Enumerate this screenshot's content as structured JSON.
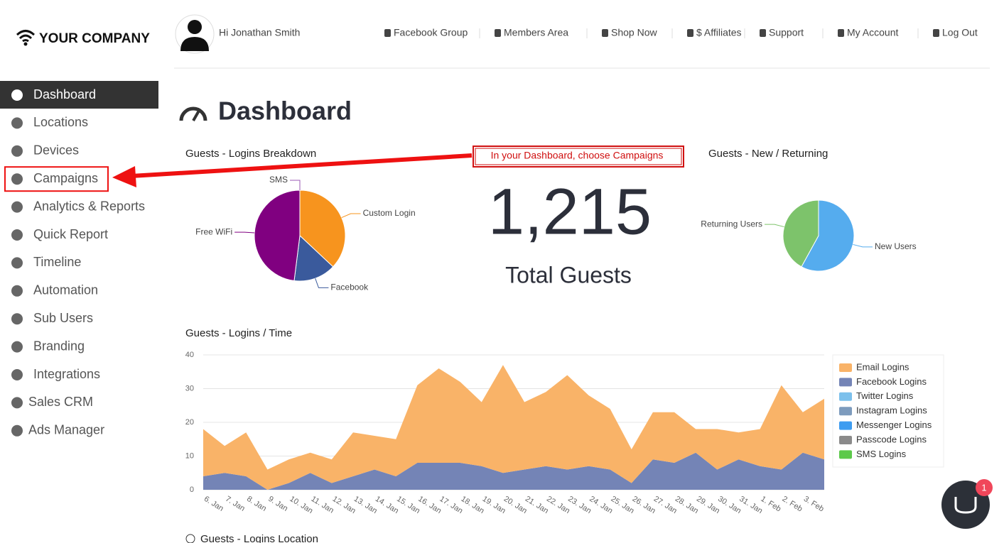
{
  "header": {
    "logo": "YOUR COMPANY",
    "greeting": "Hi Jonathan Smith",
    "links": [
      "Facebook Group",
      "Members Area",
      "Shop Now",
      "$ Affiliates",
      "Support",
      "My Account",
      "Log Out"
    ]
  },
  "sidebar": {
    "active": 0,
    "highlighted": 3,
    "items": [
      "Dashboard",
      "Locations",
      "Devices",
      "Campaigns",
      "Analytics & Reports",
      "Quick Report",
      "Timeline",
      "Automation",
      "Sub Users",
      "Branding",
      "Integrations",
      "Sales CRM",
      "Ads Manager"
    ]
  },
  "page_title": "Dashboard",
  "annotation": "In your Dashboard, choose Campaigns",
  "total_guests": {
    "value": "1,215",
    "label": "Total Guests"
  },
  "charts": [
    {
      "type": "pie",
      "title": "Guests - Logins Breakdown",
      "categories": [
        "Custom Login",
        "Facebook",
        "Free WiFi",
        "SMS"
      ],
      "values": [
        37,
        15,
        48,
        0
      ],
      "colors": [
        "#f7941e",
        "#3a5a9c",
        "#800080",
        "#9b59b6"
      ]
    },
    {
      "type": "pie",
      "title": "Guests - New / Returning",
      "categories": [
        "New Users",
        "Returning Users"
      ],
      "values": [
        58,
        42
      ],
      "colors": [
        "#55acee",
        "#7dc36b"
      ]
    },
    {
      "type": "area",
      "title": "Guests - Logins / Time",
      "stacked": true,
      "grid": true,
      "legend": "right",
      "categories": [
        "6. Jan",
        "7. Jan",
        "8. Jan",
        "9. Jan",
        "10. Jan",
        "11. Jan",
        "12. Jan",
        "13. Jan",
        "14. Jan",
        "15. Jan",
        "16. Jan",
        "17. Jan",
        "18. Jan",
        "19. Jan",
        "20. Jan",
        "21. Jan",
        "22. Jan",
        "23. Jan",
        "24. Jan",
        "25. Jan",
        "26. Jan",
        "27. Jan",
        "28. Jan",
        "29. Jan",
        "30. Jan",
        "31. Jan",
        "1. Feb",
        "2. Feb",
        "3. Feb",
        null
      ],
      "ylim": [
        0,
        40
      ],
      "yticks": [
        0,
        10,
        20,
        30,
        40
      ],
      "series": [
        {
          "name": "Email Logins",
          "color": "#f9b368",
          "values": [
            14,
            8,
            13,
            6,
            7,
            6,
            7,
            13,
            10,
            11,
            23,
            28,
            24,
            19,
            32,
            20,
            22,
            28,
            21,
            18,
            10,
            14,
            15,
            7,
            12,
            8,
            11,
            25,
            12,
            18
          ]
        },
        {
          "name": "Facebook Logins",
          "color": "#7484b6",
          "values": [
            4,
            5,
            4,
            0,
            2,
            5,
            2,
            4,
            6,
            4,
            8,
            8,
            8,
            7,
            5,
            6,
            7,
            6,
            7,
            6,
            2,
            9,
            8,
            11,
            6,
            9,
            7,
            6,
            11,
            9
          ]
        },
        {
          "name": "Twitter Logins",
          "color": "#7cc0ec",
          "values": [
            0,
            0,
            0,
            0,
            0,
            0,
            0,
            0,
            0,
            0,
            0,
            0,
            0,
            0,
            0,
            0,
            0,
            0,
            0,
            0,
            0,
            0,
            0,
            0,
            0,
            0,
            0,
            0,
            0,
            0
          ]
        },
        {
          "name": "Instagram Logins",
          "color": "#7d9bbd",
          "values": [
            0,
            0,
            0,
            0,
            0,
            0,
            0,
            0,
            0,
            0,
            0,
            0,
            0,
            0,
            0,
            0,
            0,
            0,
            0,
            0,
            0,
            0,
            0,
            0,
            0,
            0,
            0,
            0,
            0,
            0
          ]
        },
        {
          "name": "Messenger Logins",
          "color": "#3d9cf0",
          "values": [
            0,
            0,
            0,
            0,
            0,
            0,
            0,
            0,
            0,
            0,
            0,
            0,
            0,
            0,
            0,
            0,
            0,
            0,
            0,
            0,
            0,
            0,
            0,
            0,
            0,
            0,
            0,
            0,
            0,
            0
          ]
        },
        {
          "name": "Passcode Logins",
          "color": "#8a8a8a",
          "values": [
            0,
            0,
            0,
            0,
            0,
            0,
            0,
            0,
            0,
            0,
            0,
            0,
            0,
            0,
            0,
            0,
            0,
            0,
            0,
            0,
            0,
            0,
            0,
            0,
            0,
            0,
            0,
            0,
            0,
            0
          ]
        },
        {
          "name": "SMS Logins",
          "color": "#5cc94a",
          "values": [
            0,
            0,
            0,
            0,
            0,
            0,
            0,
            0,
            0,
            0,
            0,
            0,
            0,
            0,
            0,
            0,
            0,
            0,
            0,
            0,
            0,
            0,
            0,
            0,
            0,
            0,
            0,
            0,
            0,
            0
          ]
        }
      ]
    }
  ],
  "section_next": "Guests - Logins Location",
  "chat_badge": "1"
}
